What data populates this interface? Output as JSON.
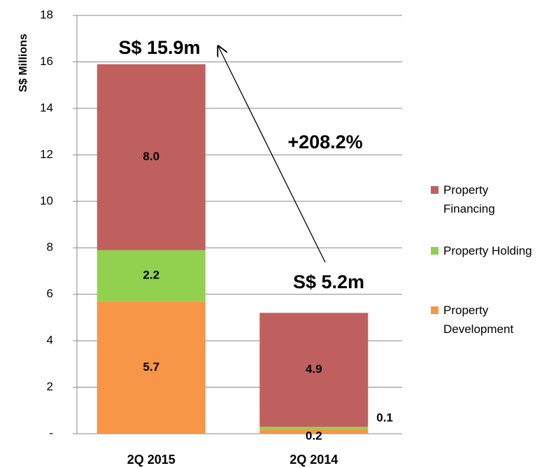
{
  "chart_data": {
    "type": "stacked-bar",
    "y_label": "S$ Millions",
    "categories": [
      "2Q 2015",
      "2Q 2014"
    ],
    "series": [
      {
        "name": "Property Development",
        "color": "#f79646",
        "values": [
          5.7,
          0.2
        ]
      },
      {
        "name": "Property Holding",
        "color": "#92d050",
        "values": [
          2.2,
          0.1
        ]
      },
      {
        "name": "Property Financing",
        "color": "#c0605e",
        "values": [
          8.0,
          4.9
        ],
        "value_labels": [
          "8.0",
          "4.9"
        ]
      }
    ],
    "ylim": [
      0,
      18
    ],
    "yticks": [
      {
        "value": 0,
        "label": "-"
      },
      2,
      4,
      6,
      8,
      10,
      12,
      14,
      16,
      18
    ],
    "grid": true,
    "legend": "right",
    "annotations": [
      "S$ 15.9m",
      "S$ 5.2m",
      "+208.2%"
    ]
  }
}
